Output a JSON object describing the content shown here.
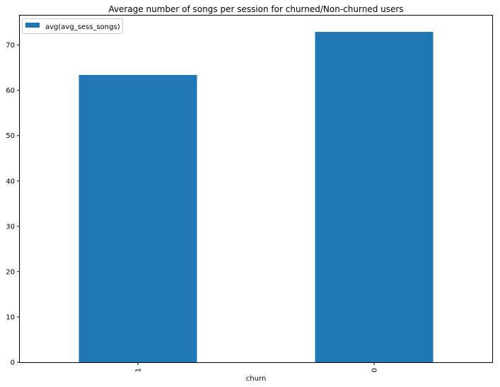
{
  "chart_data": {
    "type": "bar",
    "title": "Average number of songs per session for churned/Non-churned users",
    "xlabel": "churn",
    "ylabel": "",
    "categories": [
      "1",
      "0"
    ],
    "series": [
      {
        "name": "avg(avg_sess_songs)",
        "values": [
          63.4,
          72.9
        ],
        "color": "#1f77b4"
      }
    ],
    "ylim": [
      0,
      76.5
    ],
    "yticks": [
      0,
      10,
      20,
      30,
      40,
      50,
      60,
      70
    ],
    "grid": false,
    "legend_position": "top-left"
  }
}
